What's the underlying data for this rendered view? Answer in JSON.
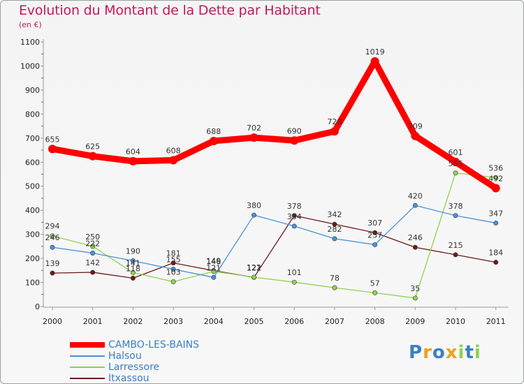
{
  "chart_data": {
    "type": "line",
    "title": "Evolution du Montant de la Dette par Habitant",
    "subtitle": "(en €)",
    "x": [
      "2000",
      "2001",
      "2002",
      "2003",
      "2004",
      "2005",
      "2006",
      "2007",
      "2008",
      "2009",
      "2010",
      "2011"
    ],
    "ylim": [
      0,
      1100
    ],
    "yticks": [
      0,
      100,
      200,
      300,
      400,
      500,
      600,
      700,
      800,
      900,
      1000,
      1100
    ],
    "grid": false,
    "legend_position": "bottom-left",
    "series": [
      {
        "name": "CAMBO-LES-BAINS",
        "color": "#ff0000",
        "values": [
          655,
          625,
          604,
          608,
          688,
          702,
          690,
          728,
          1019,
          709,
          601,
          492
        ]
      },
      {
        "name": "Halsou",
        "color": "#4a90d9",
        "values": [
          246,
          222,
          190,
          155,
          121,
          380,
          334,
          282,
          257,
          420,
          378,
          347
        ]
      },
      {
        "name": "Larressore",
        "color": "#8fd14f",
        "values": [
          294,
          250,
          141,
          103,
          146,
          122,
          101,
          78,
          57,
          35,
          555,
          536
        ]
      },
      {
        "name": "Itxassou",
        "color": "#6b1a1a",
        "values": [
          139,
          142,
          118,
          181,
          149,
          121,
          378,
          342,
          307,
          246,
          215,
          184
        ]
      }
    ]
  },
  "logo": {
    "text": "Proxiti"
  }
}
